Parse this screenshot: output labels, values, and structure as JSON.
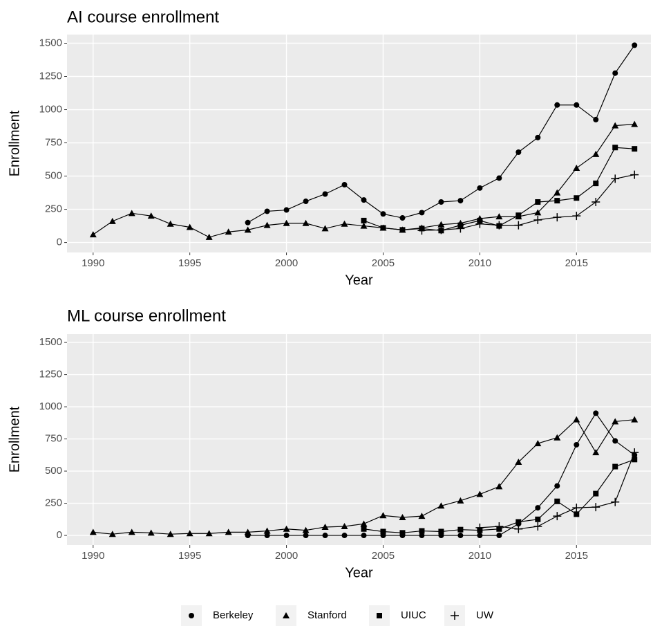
{
  "chart_data": [
    {
      "type": "line",
      "title": "AI course enrollment",
      "xlabel": "Year",
      "ylabel": "Enrollment",
      "x": [
        1990,
        1991,
        1992,
        1993,
        1994,
        1995,
        1996,
        1997,
        1998,
        1999,
        2000,
        2001,
        2002,
        2003,
        2004,
        2005,
        2006,
        2007,
        2008,
        2009,
        2010,
        2011,
        2012,
        2013,
        2014,
        2015,
        2016,
        2017,
        2018
      ],
      "xlim": [
        1988.65,
        2018.85
      ],
      "xticks": [
        1990,
        1995,
        2000,
        2005,
        2010,
        2015
      ],
      "ylim": [
        -75,
        1565
      ],
      "yticks": [
        0,
        250,
        500,
        750,
        1000,
        1250,
        1500
      ],
      "grid": true,
      "series": [
        {
          "name": "Berkeley",
          "color": "#000000",
          "shape": "circle",
          "values": [
            null,
            null,
            null,
            null,
            null,
            null,
            null,
            null,
            150,
            235,
            245,
            310,
            365,
            435,
            320,
            215,
            185,
            225,
            305,
            315,
            410,
            485,
            680,
            790,
            1035,
            1035,
            925,
            1275,
            1485
          ]
        },
        {
          "name": "Stanford",
          "color": "#000000",
          "shape": "triangle",
          "values": [
            60,
            160,
            220,
            200,
            140,
            115,
            40,
            80,
            95,
            130,
            145,
            145,
            105,
            140,
            125,
            110,
            95,
            110,
            135,
            145,
            180,
            195,
            195,
            225,
            375,
            560,
            665,
            880,
            890
          ]
        },
        {
          "name": "UIUC",
          "color": "#000000",
          "shape": "square",
          "values": [
            null,
            null,
            null,
            null,
            null,
            null,
            null,
            null,
            null,
            null,
            null,
            null,
            null,
            null,
            165,
            110,
            95,
            105,
            90,
            130,
            165,
            125,
            205,
            305,
            315,
            335,
            445,
            715,
            705
          ]
        },
        {
          "name": "UW",
          "color": "#000000",
          "shape": "cross",
          "values": [
            null,
            null,
            null,
            null,
            null,
            null,
            null,
            null,
            null,
            null,
            null,
            null,
            null,
            null,
            null,
            null,
            null,
            90,
            95,
            105,
            140,
            130,
            130,
            170,
            190,
            200,
            305,
            480,
            510
          ]
        }
      ]
    },
    {
      "type": "line",
      "title": "ML course enrollment",
      "xlabel": "Year",
      "ylabel": "Enrollment",
      "x": [
        1990,
        1991,
        1992,
        1993,
        1994,
        1995,
        1996,
        1997,
        1998,
        1999,
        2000,
        2001,
        2002,
        2003,
        2004,
        2005,
        2006,
        2007,
        2008,
        2009,
        2010,
        2011,
        2012,
        2013,
        2014,
        2015,
        2016,
        2017,
        2018
      ],
      "xlim": [
        1988.65,
        2018.85
      ],
      "xticks": [
        1990,
        1995,
        2000,
        2005,
        2010,
        2015
      ],
      "ylim": [
        -75,
        1565
      ],
      "yticks": [
        0,
        250,
        500,
        750,
        1000,
        1250,
        1500
      ],
      "grid": true,
      "series": [
        {
          "name": "Berkeley",
          "color": "#000000",
          "shape": "circle",
          "values": [
            null,
            null,
            null,
            null,
            null,
            null,
            null,
            null,
            0,
            0,
            0,
            0,
            0,
            0,
            0,
            0,
            0,
            0,
            0,
            0,
            0,
            0,
            90,
            215,
            385,
            705,
            950,
            735,
            625
          ]
        },
        {
          "name": "Stanford",
          "color": "#000000",
          "shape": "triangle",
          "values": [
            25,
            10,
            25,
            20,
            10,
            15,
            15,
            25,
            25,
            35,
            50,
            40,
            65,
            70,
            90,
            155,
            140,
            150,
            230,
            270,
            320,
            380,
            570,
            715,
            760,
            900,
            645,
            885,
            900
          ]
        },
        {
          "name": "UIUC",
          "color": "#000000",
          "shape": "square",
          "values": [
            null,
            null,
            null,
            null,
            null,
            null,
            null,
            null,
            null,
            null,
            null,
            null,
            null,
            null,
            50,
            30,
            20,
            35,
            30,
            45,
            40,
            50,
            105,
            125,
            265,
            165,
            325,
            535,
            590
          ]
        },
        {
          "name": "UW",
          "color": "#000000",
          "shape": "cross",
          "values": [
            null,
            null,
            null,
            null,
            null,
            null,
            null,
            null,
            null,
            null,
            null,
            null,
            null,
            null,
            null,
            null,
            null,
            null,
            null,
            null,
            60,
            70,
            50,
            70,
            150,
            215,
            220,
            260,
            645
          ]
        }
      ]
    }
  ]
}
